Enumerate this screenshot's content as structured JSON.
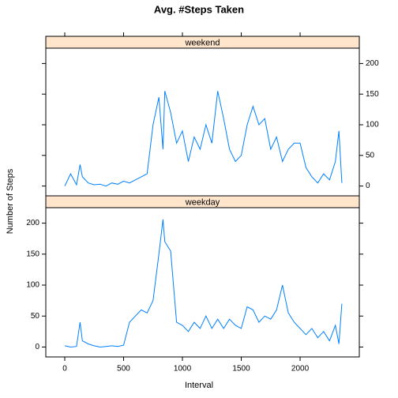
{
  "chart_data": {
    "type": "line",
    "title": "Avg. #Steps Taken",
    "xlabel": "Interval",
    "ylabel": "Number of Steps",
    "color": "#0080ff",
    "strip_color": "#ffe5cc",
    "xlim": [
      -161,
      2503
    ],
    "xticks": [
      0,
      500,
      1000,
      1500,
      2000
    ],
    "ylim": [
      -16,
      225
    ],
    "yticks": [
      0,
      50,
      100,
      150,
      200
    ],
    "x": [
      0,
      50,
      100,
      130,
      150,
      200,
      250,
      300,
      350,
      400,
      450,
      500,
      550,
      600,
      650,
      700,
      750,
      800,
      835,
      850,
      900,
      950,
      1000,
      1050,
      1100,
      1150,
      1200,
      1250,
      1300,
      1350,
      1400,
      1450,
      1500,
      1550,
      1600,
      1650,
      1700,
      1750,
      1800,
      1850,
      1900,
      1950,
      2000,
      2050,
      2100,
      2150,
      2200,
      2250,
      2300,
      2330,
      2355
    ],
    "series": [
      {
        "name": "weekend",
        "values": [
          0,
          20,
          2,
          35,
          15,
          5,
          2,
          3,
          0,
          5,
          3,
          8,
          5,
          10,
          15,
          20,
          100,
          145,
          60,
          155,
          120,
          70,
          90,
          40,
          80,
          60,
          100,
          70,
          155,
          110,
          60,
          40,
          50,
          100,
          130,
          100,
          110,
          60,
          80,
          40,
          60,
          70,
          70,
          30,
          15,
          5,
          20,
          10,
          40,
          90,
          5
        ]
      },
      {
        "name": "weekday",
        "values": [
          2,
          0,
          1,
          40,
          10,
          5,
          2,
          0,
          1,
          2,
          1,
          3,
          40,
          50,
          60,
          55,
          75,
          150,
          206,
          170,
          155,
          40,
          35,
          25,
          40,
          30,
          50,
          30,
          45,
          30,
          45,
          35,
          30,
          65,
          60,
          40,
          50,
          45,
          60,
          100,
          55,
          40,
          30,
          20,
          30,
          15,
          25,
          10,
          35,
          5,
          70
        ]
      }
    ]
  }
}
